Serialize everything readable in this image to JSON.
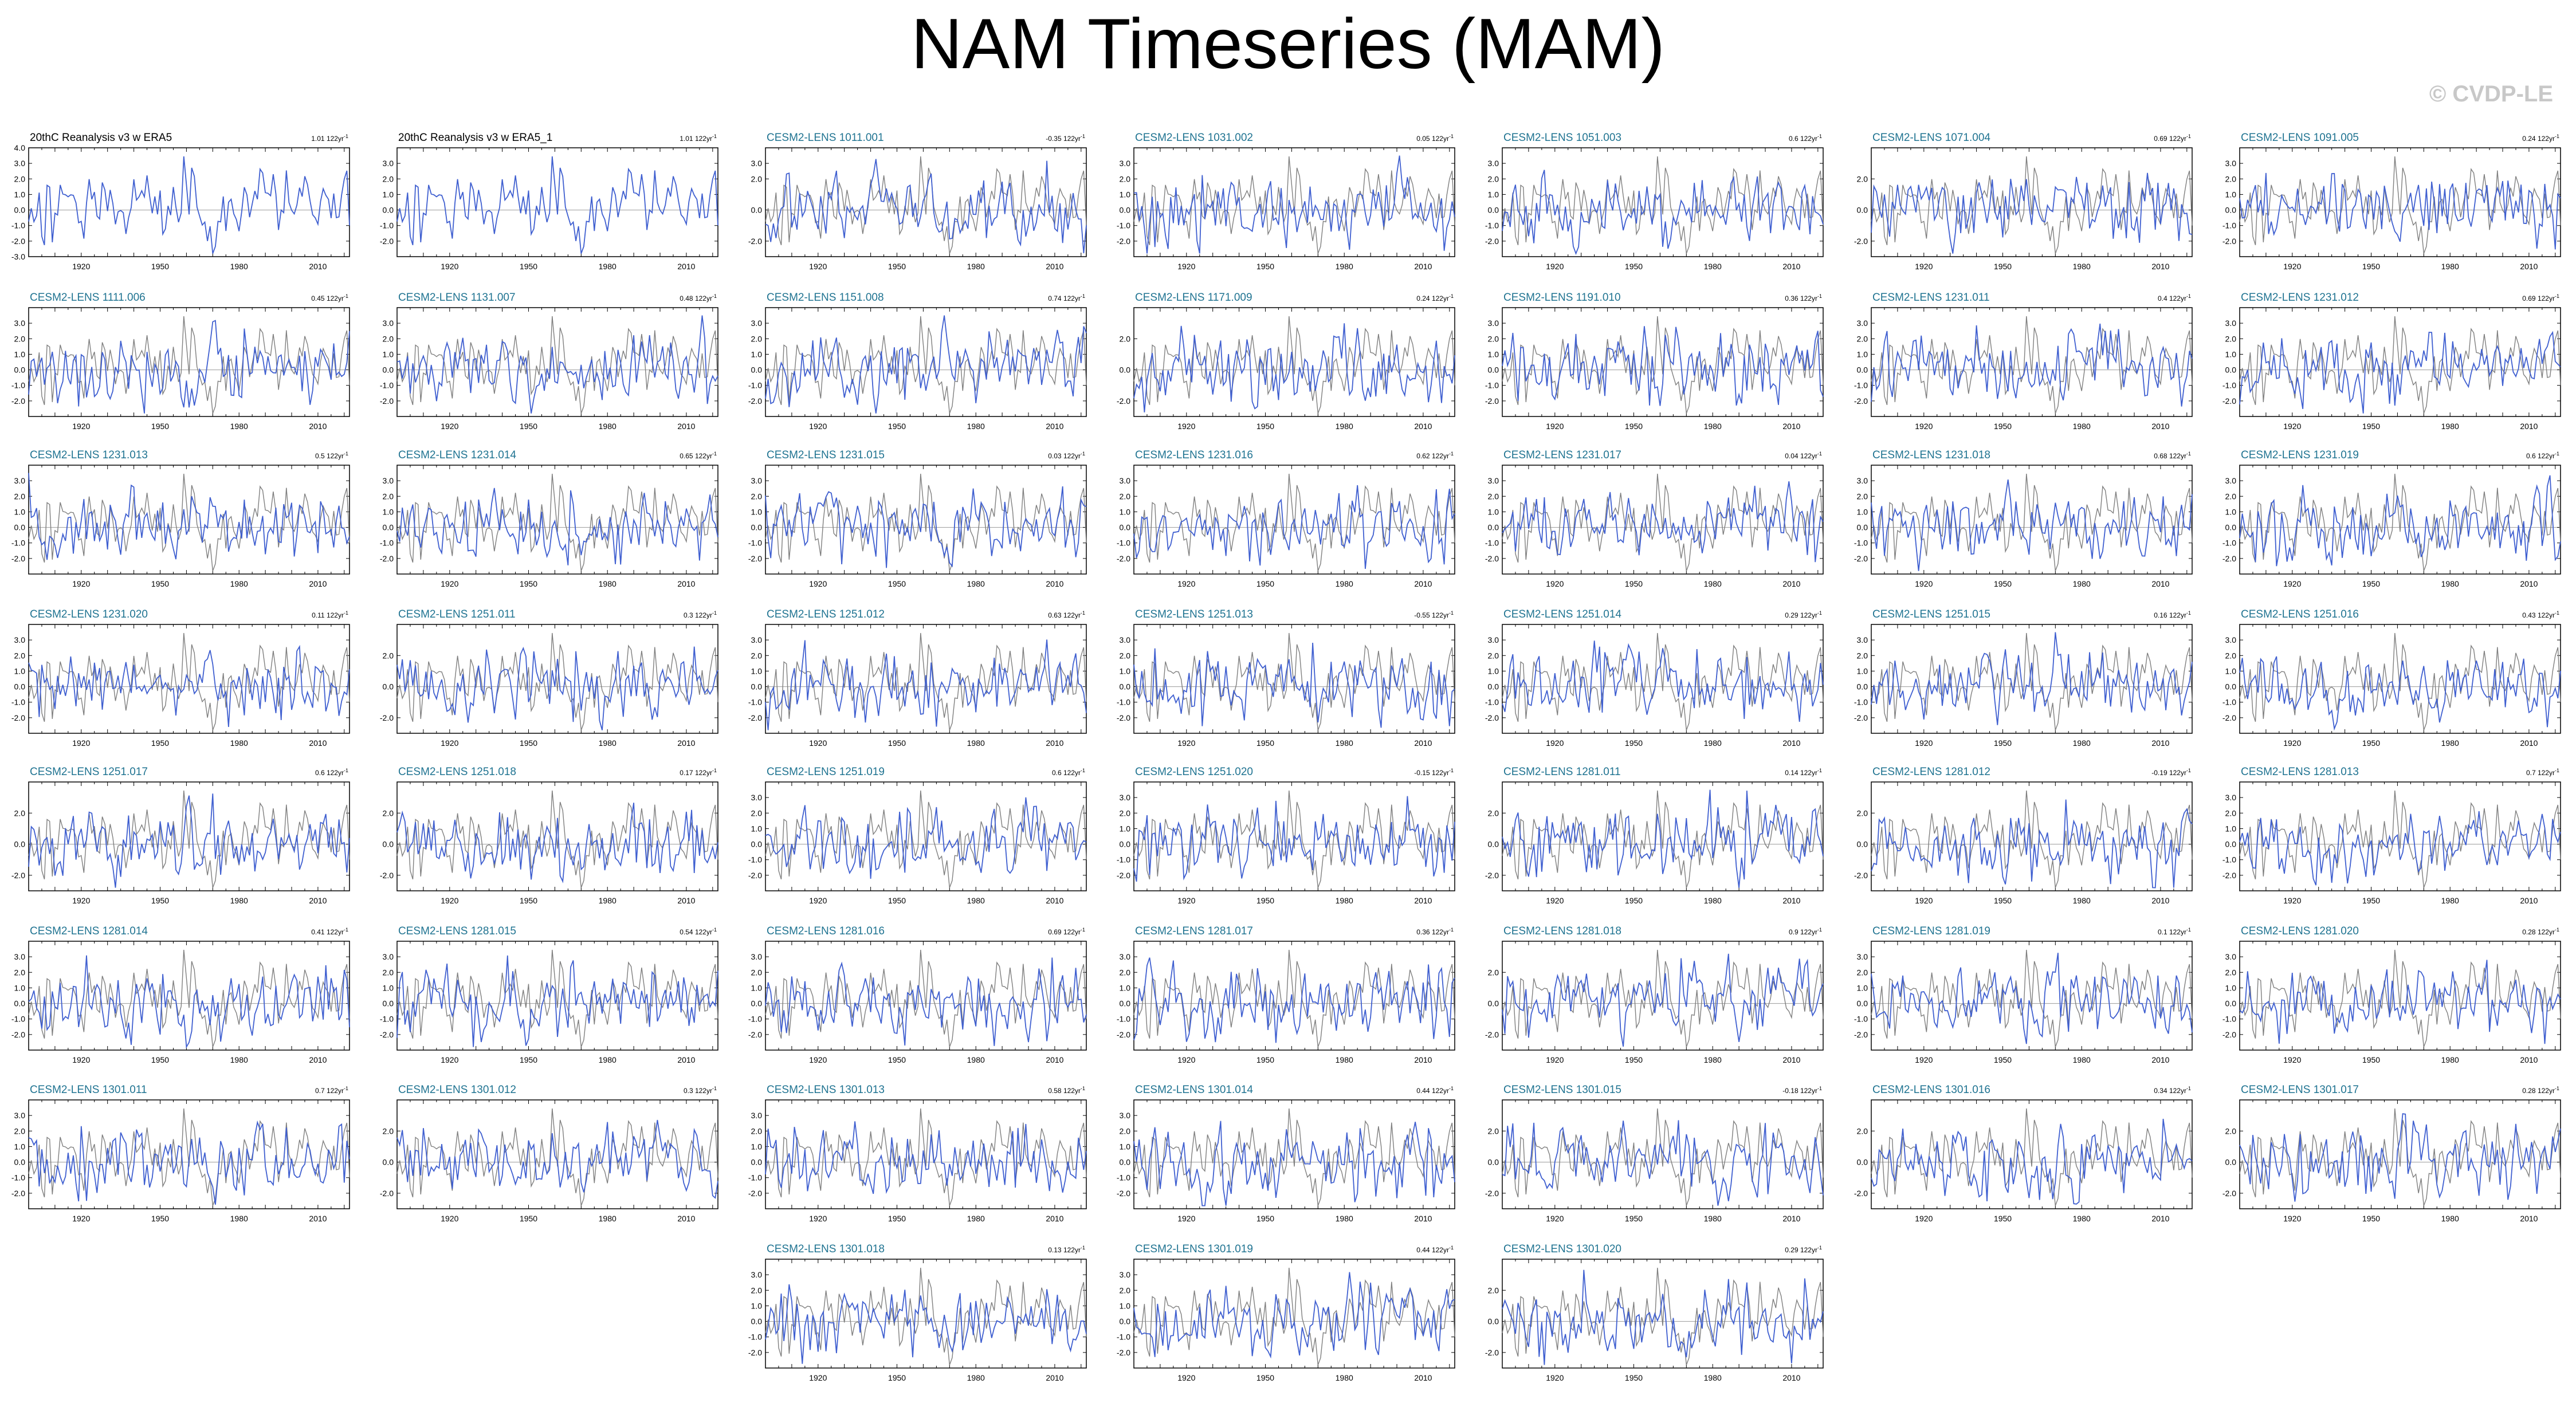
{
  "page": {
    "title": "NAM Timeseries (MAM)",
    "copyright": "© CVDP-LE",
    "colors": {
      "simulation": "#3f5fd0",
      "observation": "#7f7f7f",
      "obs_title": "#000000",
      "member_title": "#1f7391",
      "copyright": "#c8c8c8"
    }
  },
  "chart_data": {
    "type": "line",
    "grid": false,
    "xlim": [
      1900,
      2022
    ],
    "x_ticks": [
      1920,
      1950,
      1980,
      2010
    ],
    "x_tick_labels": [
      "1920",
      "1950",
      "1980",
      "2010"
    ],
    "trend_unit": "122yr",
    "panels": [
      {
        "title": "20thC Reanalysis v3 w ERA5",
        "trend": "1.01",
        "obs": true,
        "ylim": [
          -3,
          4
        ],
        "y_ticks": [
          "4.0",
          "3.0",
          "2.0",
          "1.0",
          "0.0",
          "-1.0",
          "-2.0",
          "-3.0"
        ]
      },
      {
        "title": "20thC Reanalysis v3 w ERA5_1",
        "trend": "1.01",
        "obs": true,
        "ylim": [
          -3,
          4
        ],
        "y_ticks": [
          "3.0",
          "2.0",
          "1.0",
          "0.0",
          "-1.0",
          "-2.0"
        ]
      },
      {
        "title": "CESM2-LENS 1011.001",
        "trend": "-0.35",
        "ylim": [
          -3,
          4
        ],
        "y_ticks": [
          "3.0",
          "2.0",
          "0.0",
          "-2.0"
        ]
      },
      {
        "title": "CESM2-LENS 1031.002",
        "trend": "0.05",
        "ylim": [
          -3,
          4
        ],
        "y_ticks": [
          "3.0",
          "2.0",
          "1.0",
          "0.0",
          "-1.0",
          "-2.0"
        ]
      },
      {
        "title": "CESM2-LENS 1051.003",
        "trend": "0.6",
        "ylim": [
          -3,
          4
        ],
        "y_ticks": [
          "3.0",
          "2.0",
          "1.0",
          "0.0",
          "-1.0",
          "-2.0"
        ]
      },
      {
        "title": "CESM2-LENS 1071.004",
        "trend": "0.69",
        "ylim": [
          -3,
          4
        ],
        "y_ticks": [
          "2.0",
          "0.0",
          "-2.0"
        ]
      },
      {
        "title": "CESM2-LENS 1091.005",
        "trend": "0.24",
        "ylim": [
          -3,
          4
        ],
        "y_ticks": [
          "3.0",
          "2.0",
          "1.0",
          "0.0",
          "-1.0",
          "-2.0"
        ]
      },
      {
        "title": "CESM2-LENS 1111.006",
        "trend": "0.45",
        "ylim": [
          -3,
          4
        ],
        "y_ticks": [
          "3.0",
          "2.0",
          "1.0",
          "0.0",
          "-1.0",
          "-2.0"
        ]
      },
      {
        "title": "CESM2-LENS 1131.007",
        "trend": "0.48",
        "ylim": [
          -3,
          4
        ],
        "y_ticks": [
          "3.0",
          "2.0",
          "1.0",
          "0.0",
          "-1.0",
          "-2.0"
        ]
      },
      {
        "title": "CESM2-LENS 1151.008",
        "trend": "0.74",
        "ylim": [
          -3,
          4
        ],
        "y_ticks": [
          "3.0",
          "2.0",
          "1.0",
          "0.0",
          "-1.0",
          "-2.0"
        ]
      },
      {
        "title": "CESM2-LENS 1171.009",
        "trend": "0.24",
        "ylim": [
          -3,
          4
        ],
        "y_ticks": [
          "2.0",
          "0.0",
          "-2.0"
        ]
      },
      {
        "title": "CESM2-LENS 1191.010",
        "trend": "0.36",
        "ylim": [
          -3,
          4
        ],
        "y_ticks": [
          "3.0",
          "2.0",
          "1.0",
          "0.0",
          "-1.0",
          "-2.0"
        ]
      },
      {
        "title": "CESM2-LENS 1231.011",
        "trend": "0.4",
        "ylim": [
          -3,
          4
        ],
        "y_ticks": [
          "3.0",
          "2.0",
          "1.0",
          "0.0",
          "-1.0",
          "-2.0"
        ]
      },
      {
        "title": "CESM2-LENS 1231.012",
        "trend": "0.69",
        "ylim": [
          -3,
          4
        ],
        "y_ticks": [
          "3.0",
          "2.0",
          "1.0",
          "0.0",
          "-1.0",
          "-2.0"
        ]
      },
      {
        "title": "CESM2-LENS 1231.013",
        "trend": "0.5",
        "ylim": [
          -3,
          4
        ],
        "y_ticks": [
          "3.0",
          "2.0",
          "1.0",
          "0.0",
          "-1.0",
          "-2.0"
        ]
      },
      {
        "title": "CESM2-LENS 1231.014",
        "trend": "0.65",
        "ylim": [
          -3,
          4
        ],
        "y_ticks": [
          "3.0",
          "2.0",
          "1.0",
          "0.0",
          "-1.0",
          "-2.0"
        ]
      },
      {
        "title": "CESM2-LENS 1231.015",
        "trend": "0.03",
        "ylim": [
          -3,
          4
        ],
        "y_ticks": [
          "3.0",
          "2.0",
          "1.0",
          "0.0",
          "-1.0",
          "-2.0"
        ]
      },
      {
        "title": "CESM2-LENS 1231.016",
        "trend": "0.62",
        "ylim": [
          -3,
          4
        ],
        "y_ticks": [
          "3.0",
          "2.0",
          "1.0",
          "0.0",
          "-1.0",
          "-2.0"
        ]
      },
      {
        "title": "CESM2-LENS 1231.017",
        "trend": "0.04",
        "ylim": [
          -3,
          4
        ],
        "y_ticks": [
          "3.0",
          "2.0",
          "1.0",
          "0.0",
          "-1.0",
          "-2.0"
        ]
      },
      {
        "title": "CESM2-LENS 1231.018",
        "trend": "0.68",
        "ylim": [
          -3,
          4
        ],
        "y_ticks": [
          "3.0",
          "2.0",
          "1.0",
          "0.0",
          "-1.0",
          "-2.0"
        ]
      },
      {
        "title": "CESM2-LENS 1231.019",
        "trend": "0.6",
        "ylim": [
          -3,
          4
        ],
        "y_ticks": [
          "3.0",
          "2.0",
          "1.0",
          "0.0",
          "-1.0",
          "-2.0"
        ]
      },
      {
        "title": "CESM2-LENS 1231.020",
        "trend": "0.11",
        "ylim": [
          -3,
          4
        ],
        "y_ticks": [
          "3.0",
          "2.0",
          "1.0",
          "0.0",
          "-1.0",
          "-2.0"
        ]
      },
      {
        "title": "CESM2-LENS 1251.011",
        "trend": "0.3",
        "ylim": [
          -3,
          4
        ],
        "y_ticks": [
          "2.0",
          "0.0",
          "-2.0"
        ]
      },
      {
        "title": "CESM2-LENS 1251.012",
        "trend": "0.63",
        "ylim": [
          -3,
          4
        ],
        "y_ticks": [
          "3.0",
          "2.0",
          "1.0",
          "0.0",
          "-1.0",
          "-2.0"
        ]
      },
      {
        "title": "CESM2-LENS 1251.013",
        "trend": "-0.55",
        "ylim": [
          -3,
          4
        ],
        "y_ticks": [
          "3.0",
          "2.0",
          "1.0",
          "0.0",
          "-1.0",
          "-2.0"
        ]
      },
      {
        "title": "CESM2-LENS 1251.014",
        "trend": "0.29",
        "ylim": [
          -3,
          4
        ],
        "y_ticks": [
          "3.0",
          "2.0",
          "1.0",
          "0.0",
          "-1.0",
          "-2.0"
        ]
      },
      {
        "title": "CESM2-LENS 1251.015",
        "trend": "0.16",
        "ylim": [
          -3,
          4
        ],
        "y_ticks": [
          "3.0",
          "2.0",
          "1.0",
          "0.0",
          "-1.0",
          "-2.0"
        ]
      },
      {
        "title": "CESM2-LENS 1251.016",
        "trend": "0.43",
        "ylim": [
          -3,
          4
        ],
        "y_ticks": [
          "3.0",
          "2.0",
          "1.0",
          "0.0",
          "-1.0",
          "-2.0"
        ]
      },
      {
        "title": "CESM2-LENS 1251.017",
        "trend": "0.6",
        "ylim": [
          -3,
          4
        ],
        "y_ticks": [
          "2.0",
          "0.0",
          "-2.0"
        ]
      },
      {
        "title": "CESM2-LENS 1251.018",
        "trend": "0.17",
        "ylim": [
          -3,
          4
        ],
        "y_ticks": [
          "2.0",
          "0.0",
          "-2.0"
        ]
      },
      {
        "title": "CESM2-LENS 1251.019",
        "trend": "0.6",
        "ylim": [
          -3,
          4
        ],
        "y_ticks": [
          "3.0",
          "2.0",
          "1.0",
          "0.0",
          "-1.0",
          "-2.0"
        ]
      },
      {
        "title": "CESM2-LENS 1251.020",
        "trend": "-0.15",
        "ylim": [
          -3,
          4
        ],
        "y_ticks": [
          "3.0",
          "2.0",
          "1.0",
          "0.0",
          "-1.0",
          "-2.0"
        ]
      },
      {
        "title": "CESM2-LENS 1281.011",
        "trend": "0.14",
        "ylim": [
          -3,
          4
        ],
        "y_ticks": [
          "2.0",
          "0.0",
          "-2.0"
        ]
      },
      {
        "title": "CESM2-LENS 1281.012",
        "trend": "-0.19",
        "ylim": [
          -3,
          4
        ],
        "y_ticks": [
          "2.0",
          "0.0",
          "-2.0"
        ]
      },
      {
        "title": "CESM2-LENS 1281.013",
        "trend": "0.7",
        "ylim": [
          -3,
          4
        ],
        "y_ticks": [
          "3.0",
          "2.0",
          "1.0",
          "0.0",
          "-1.0",
          "-2.0"
        ]
      },
      {
        "title": "CESM2-LENS 1281.014",
        "trend": "0.41",
        "ylim": [
          -3,
          4
        ],
        "y_ticks": [
          "3.0",
          "2.0",
          "1.0",
          "0.0",
          "-1.0",
          "-2.0"
        ]
      },
      {
        "title": "CESM2-LENS 1281.015",
        "trend": "0.54",
        "ylim": [
          -3,
          4
        ],
        "y_ticks": [
          "3.0",
          "2.0",
          "1.0",
          "0.0",
          "-1.0",
          "-2.0"
        ]
      },
      {
        "title": "CESM2-LENS 1281.016",
        "trend": "0.69",
        "ylim": [
          -3,
          4
        ],
        "y_ticks": [
          "3.0",
          "2.0",
          "1.0",
          "0.0",
          "-1.0",
          "-2.0"
        ]
      },
      {
        "title": "CESM2-LENS 1281.017",
        "trend": "0.36",
        "ylim": [
          -3,
          4
        ],
        "y_ticks": [
          "3.0",
          "2.0",
          "1.0",
          "0.0",
          "-1.0",
          "-2.0"
        ]
      },
      {
        "title": "CESM2-LENS 1281.018",
        "trend": "0.9",
        "ylim": [
          -3,
          4
        ],
        "y_ticks": [
          "2.0",
          "0.0",
          "-2.0"
        ]
      },
      {
        "title": "CESM2-LENS 1281.019",
        "trend": "0.1",
        "ylim": [
          -3,
          4
        ],
        "y_ticks": [
          "3.0",
          "2.0",
          "1.0",
          "0.0",
          "-1.0",
          "-2.0"
        ]
      },
      {
        "title": "CESM2-LENS 1281.020",
        "trend": "0.28",
        "ylim": [
          -3,
          4
        ],
        "y_ticks": [
          "3.0",
          "2.0",
          "1.0",
          "0.0",
          "-1.0",
          "-2.0"
        ]
      },
      {
        "title": "CESM2-LENS 1301.011",
        "trend": "0.7",
        "ylim": [
          -3,
          4
        ],
        "y_ticks": [
          "3.0",
          "2.0",
          "1.0",
          "0.0",
          "-1.0",
          "-2.0"
        ]
      },
      {
        "title": "CESM2-LENS 1301.012",
        "trend": "0.3",
        "ylim": [
          -3,
          4
        ],
        "y_ticks": [
          "2.0",
          "0.0",
          "-2.0"
        ]
      },
      {
        "title": "CESM2-LENS 1301.013",
        "trend": "0.58",
        "ylim": [
          -3,
          4
        ],
        "y_ticks": [
          "3.0",
          "2.0",
          "1.0",
          "0.0",
          "-1.0",
          "-2.0"
        ]
      },
      {
        "title": "CESM2-LENS 1301.014",
        "trend": "0.44",
        "ylim": [
          -3,
          4
        ],
        "y_ticks": [
          "3.0",
          "2.0",
          "1.0",
          "0.0",
          "-1.0",
          "-2.0"
        ]
      },
      {
        "title": "CESM2-LENS 1301.015",
        "trend": "-0.18",
        "ylim": [
          -3,
          4
        ],
        "y_ticks": [
          "2.0",
          "0.0",
          "-2.0"
        ]
      },
      {
        "title": "CESM2-LENS 1301.016",
        "trend": "0.34",
        "ylim": [
          -3,
          4
        ],
        "y_ticks": [
          "2.0",
          "0.0",
          "-2.0"
        ]
      },
      {
        "title": "CESM2-LENS 1301.017",
        "trend": "0.28",
        "ylim": [
          -3,
          4
        ],
        "y_ticks": [
          "2.0",
          "0.0",
          "-2.0"
        ]
      },
      {
        "title": "CESM2-LENS 1301.018",
        "trend": "0.13",
        "ylim": [
          -3,
          4
        ],
        "y_ticks": [
          "3.0",
          "2.0",
          "1.0",
          "0.0",
          "-1.0",
          "-2.0"
        ]
      },
      {
        "title": "CESM2-LENS 1301.019",
        "trend": "0.44",
        "ylim": [
          -3,
          4
        ],
        "y_ticks": [
          "3.0",
          "2.0",
          "1.0",
          "0.0",
          "-1.0",
          "-2.0"
        ]
      },
      {
        "title": "CESM2-LENS 1301.020",
        "trend": "0.29",
        "ylim": [
          -3,
          4
        ],
        "y_ticks": [
          "2.0",
          "0.0",
          "-2.0"
        ]
      }
    ]
  }
}
